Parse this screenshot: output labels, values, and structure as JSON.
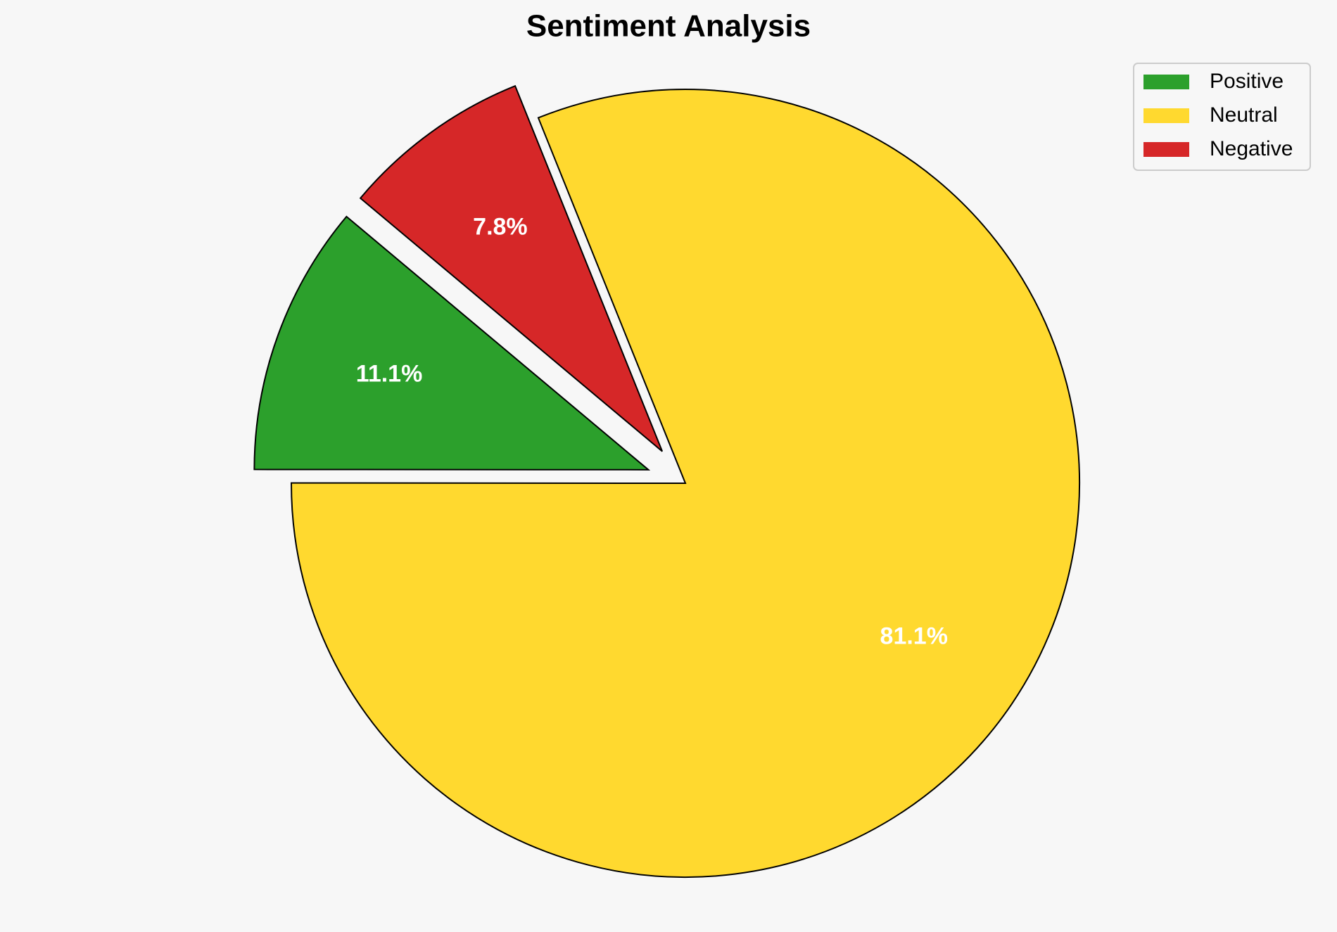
{
  "chart_data": {
    "type": "pie",
    "title": "Sentiment Analysis",
    "categories": [
      "Positive",
      "Neutral",
      "Negative"
    ],
    "values": [
      11.1,
      81.1,
      7.8
    ],
    "value_labels": [
      "11.1%",
      "81.1%",
      "7.8%"
    ],
    "colors": [
      "#2ca02c",
      "#ffd92f",
      "#d62728"
    ],
    "explode": [
      0.1,
      0,
      0.1
    ],
    "legend": "upper right"
  }
}
